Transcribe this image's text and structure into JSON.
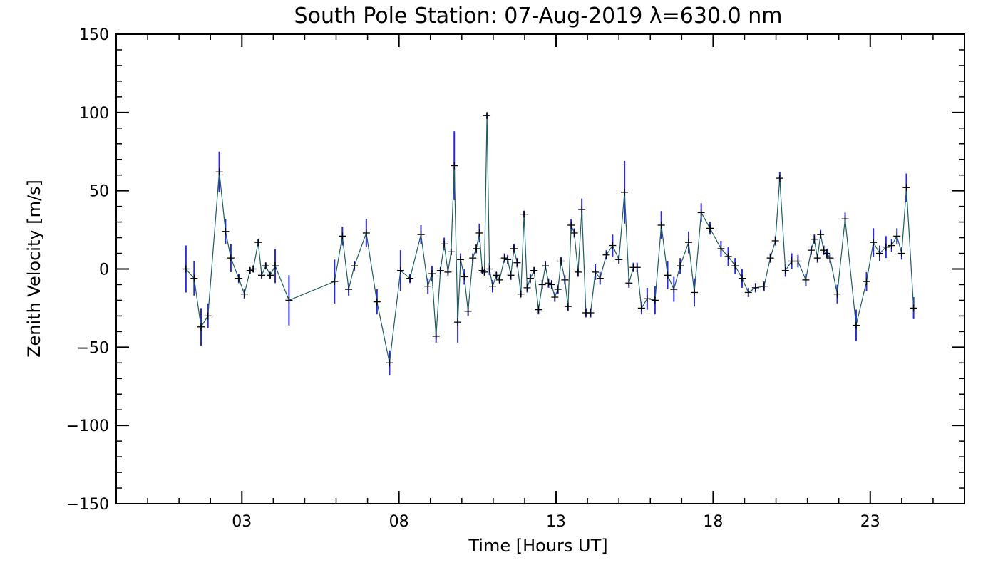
{
  "chart_data": {
    "type": "scatter",
    "title": "South Pole Station: 07-Aug-2019 λ=630.0 nm",
    "xlabel": "Time [Hours UT]",
    "ylabel": "Zenith Velocity [m/s]",
    "xlim": [
      -1.0,
      26.0
    ],
    "ylim": [
      -150,
      150
    ],
    "xticks": [
      {
        "value": 3,
        "label": "03"
      },
      {
        "value": 8,
        "label": "08"
      },
      {
        "value": 13,
        "label": "13"
      },
      {
        "value": 18,
        "label": "18"
      },
      {
        "value": 23,
        "label": "23"
      }
    ],
    "yticks": [
      {
        "value": -150,
        "label": "−150"
      },
      {
        "value": -100,
        "label": "−100"
      },
      {
        "value": -50,
        "label": "−50"
      },
      {
        "value": 0,
        "label": "0"
      },
      {
        "value": 50,
        "label": "50"
      },
      {
        "value": 100,
        "label": "100"
      },
      {
        "value": 150,
        "label": "150"
      }
    ],
    "x_minor_step": 1,
    "y_minor_step": 10,
    "series": [
      {
        "name": "zenith-velocity",
        "line_color": "#1f5f5f",
        "marker_color": "#000000",
        "errorbar_color": "#2a2ad8",
        "points": [
          {
            "x": 1.22,
            "y": 0,
            "err": 15
          },
          {
            "x": 1.48,
            "y": -6,
            "err": 11
          },
          {
            "x": 1.7,
            "y": -37,
            "err": 12
          },
          {
            "x": 1.92,
            "y": -30,
            "err": 8
          },
          {
            "x": 2.28,
            "y": 62,
            "err": 13
          },
          {
            "x": 2.48,
            "y": 24,
            "err": 8
          },
          {
            "x": 2.65,
            "y": 7,
            "err": 9
          },
          {
            "x": 2.9,
            "y": -6,
            "err": 3
          },
          {
            "x": 3.08,
            "y": -16,
            "err": 3
          },
          {
            "x": 3.26,
            "y": -1,
            "err": 2
          },
          {
            "x": 3.36,
            "y": 0,
            "err": 2
          },
          {
            "x": 3.52,
            "y": 17,
            "err": 2
          },
          {
            "x": 3.63,
            "y": -4,
            "err": 2
          },
          {
            "x": 3.76,
            "y": 2,
            "err": 2
          },
          {
            "x": 3.9,
            "y": -4,
            "err": 2
          },
          {
            "x": 4.06,
            "y": 2,
            "err": 11
          },
          {
            "x": 4.5,
            "y": -20,
            "err": 16
          },
          {
            "x": 5.95,
            "y": -8,
            "err": 14
          },
          {
            "x": 6.2,
            "y": 21,
            "err": 6
          },
          {
            "x": 6.4,
            "y": -13,
            "err": 4
          },
          {
            "x": 6.58,
            "y": 2,
            "err": 3
          },
          {
            "x": 6.96,
            "y": 23,
            "err": 9
          },
          {
            "x": 7.3,
            "y": -21,
            "err": 8
          },
          {
            "x": 7.7,
            "y": -60,
            "err": 8
          },
          {
            "x": 8.05,
            "y": -1,
            "err": 13
          },
          {
            "x": 8.35,
            "y": -6,
            "err": 3
          },
          {
            "x": 8.7,
            "y": 22,
            "err": 6
          },
          {
            "x": 8.92,
            "y": -11,
            "err": 5
          },
          {
            "x": 9.05,
            "y": -3,
            "err": 5
          },
          {
            "x": 9.18,
            "y": -43,
            "err": 4
          },
          {
            "x": 9.32,
            "y": -1,
            "err": 2
          },
          {
            "x": 9.44,
            "y": 16,
            "err": 4
          },
          {
            "x": 9.56,
            "y": -2,
            "err": 2
          },
          {
            "x": 9.66,
            "y": 11,
            "err": 2
          },
          {
            "x": 9.76,
            "y": 66,
            "err": 22
          },
          {
            "x": 9.87,
            "y": -34,
            "err": 13
          },
          {
            "x": 9.96,
            "y": 6,
            "err": 4
          },
          {
            "x": 10.08,
            "y": -5,
            "err": 5
          },
          {
            "x": 10.2,
            "y": -27,
            "err": 3
          },
          {
            "x": 10.35,
            "y": 7,
            "err": 3
          },
          {
            "x": 10.46,
            "y": 13,
            "err": 3
          },
          {
            "x": 10.56,
            "y": 23,
            "err": 6
          },
          {
            "x": 10.65,
            "y": -1,
            "err": 2
          },
          {
            "x": 10.72,
            "y": -2,
            "err": 2
          },
          {
            "x": 10.8,
            "y": 98,
            "err": 2
          },
          {
            "x": 10.88,
            "y": 0,
            "err": 4
          },
          {
            "x": 10.98,
            "y": -11,
            "err": 4
          },
          {
            "x": 11.1,
            "y": -4,
            "err": 2
          },
          {
            "x": 11.2,
            "y": -7,
            "err": 2
          },
          {
            "x": 11.36,
            "y": 7,
            "err": 3
          },
          {
            "x": 11.46,
            "y": 6,
            "err": 3
          },
          {
            "x": 11.56,
            "y": -4,
            "err": 3
          },
          {
            "x": 11.66,
            "y": 13,
            "err": 3
          },
          {
            "x": 11.76,
            "y": 4,
            "err": 3
          },
          {
            "x": 11.88,
            "y": -16,
            "err": 2
          },
          {
            "x": 11.98,
            "y": 35,
            "err": 2
          },
          {
            "x": 12.08,
            "y": -12,
            "err": 3
          },
          {
            "x": 12.18,
            "y": -6,
            "err": 3
          },
          {
            "x": 12.3,
            "y": -1,
            "err": 2
          },
          {
            "x": 12.44,
            "y": -26,
            "err": 3
          },
          {
            "x": 12.56,
            "y": -10,
            "err": 3
          },
          {
            "x": 12.66,
            "y": 2,
            "err": 3
          },
          {
            "x": 12.76,
            "y": -9,
            "err": 3
          },
          {
            "x": 12.86,
            "y": -10,
            "err": 3
          },
          {
            "x": 12.96,
            "y": -18,
            "err": 3
          },
          {
            "x": 13.06,
            "y": -13,
            "err": 3
          },
          {
            "x": 13.16,
            "y": 5,
            "err": 3
          },
          {
            "x": 13.28,
            "y": -7,
            "err": 3
          },
          {
            "x": 13.38,
            "y": -24,
            "err": 3
          },
          {
            "x": 13.48,
            "y": 28,
            "err": 4
          },
          {
            "x": 13.58,
            "y": 23,
            "err": 3
          },
          {
            "x": 13.7,
            "y": -2,
            "err": 3
          },
          {
            "x": 13.82,
            "y": 38,
            "err": 7
          },
          {
            "x": 13.95,
            "y": -28,
            "err": 3
          },
          {
            "x": 14.1,
            "y": -28,
            "err": 3
          },
          {
            "x": 14.25,
            "y": -2,
            "err": 5
          },
          {
            "x": 14.4,
            "y": -6,
            "err": 4
          },
          {
            "x": 14.6,
            "y": 9,
            "err": 3
          },
          {
            "x": 14.8,
            "y": 15,
            "err": 7
          },
          {
            "x": 15.0,
            "y": 6,
            "err": 3
          },
          {
            "x": 15.18,
            "y": 49,
            "err": 20
          },
          {
            "x": 15.32,
            "y": -9,
            "err": 3
          },
          {
            "x": 15.46,
            "y": 1,
            "err": 3
          },
          {
            "x": 15.58,
            "y": 1,
            "err": 3
          },
          {
            "x": 15.72,
            "y": -25,
            "err": 4
          },
          {
            "x": 15.9,
            "y": -19,
            "err": 7
          },
          {
            "x": 16.15,
            "y": -20,
            "err": 9
          },
          {
            "x": 16.35,
            "y": 28,
            "err": 9
          },
          {
            "x": 16.55,
            "y": -4,
            "err": 9
          },
          {
            "x": 16.75,
            "y": -13,
            "err": 8
          },
          {
            "x": 16.95,
            "y": 2,
            "err": 5
          },
          {
            "x": 17.22,
            "y": 17,
            "err": 7
          },
          {
            "x": 17.4,
            "y": -15,
            "err": 9
          },
          {
            "x": 17.62,
            "y": 36,
            "err": 6
          },
          {
            "x": 17.9,
            "y": 26,
            "err": 4
          },
          {
            "x": 18.25,
            "y": 13,
            "err": 5
          },
          {
            "x": 18.48,
            "y": 8,
            "err": 6
          },
          {
            "x": 18.7,
            "y": 2,
            "err": 5
          },
          {
            "x": 18.92,
            "y": -6,
            "err": 6
          },
          {
            "x": 19.12,
            "y": -15,
            "err": 3
          },
          {
            "x": 19.35,
            "y": -12,
            "err": 3
          },
          {
            "x": 19.62,
            "y": -11,
            "err": 3
          },
          {
            "x": 19.82,
            "y": 7,
            "err": 3
          },
          {
            "x": 19.98,
            "y": 18,
            "err": 3
          },
          {
            "x": 20.12,
            "y": 58,
            "err": 4
          },
          {
            "x": 20.3,
            "y": -1,
            "err": 4
          },
          {
            "x": 20.5,
            "y": 5,
            "err": 5
          },
          {
            "x": 20.7,
            "y": 5,
            "err": 4
          },
          {
            "x": 20.95,
            "y": -7,
            "err": 4
          },
          {
            "x": 21.12,
            "y": 12,
            "err": 3
          },
          {
            "x": 21.22,
            "y": 19,
            "err": 3
          },
          {
            "x": 21.32,
            "y": 7,
            "err": 3
          },
          {
            "x": 21.42,
            "y": 22,
            "err": 3
          },
          {
            "x": 21.52,
            "y": 12,
            "err": 3
          },
          {
            "x": 21.62,
            "y": 10,
            "err": 3
          },
          {
            "x": 21.72,
            "y": 7,
            "err": 3
          },
          {
            "x": 21.95,
            "y": -16,
            "err": 6
          },
          {
            "x": 22.2,
            "y": 32,
            "err": 4
          },
          {
            "x": 22.55,
            "y": -36,
            "err": 10
          },
          {
            "x": 22.88,
            "y": -8,
            "err": 6
          },
          {
            "x": 23.1,
            "y": 17,
            "err": 9
          },
          {
            "x": 23.3,
            "y": 10,
            "err": 5
          },
          {
            "x": 23.5,
            "y": 14,
            "err": 7
          },
          {
            "x": 23.68,
            "y": 15,
            "err": 4
          },
          {
            "x": 23.85,
            "y": 21,
            "err": 5
          },
          {
            "x": 24.0,
            "y": 10,
            "err": 4
          },
          {
            "x": 24.15,
            "y": 52,
            "err": 9
          },
          {
            "x": 24.38,
            "y": -25,
            "err": 7
          }
        ]
      }
    ]
  }
}
